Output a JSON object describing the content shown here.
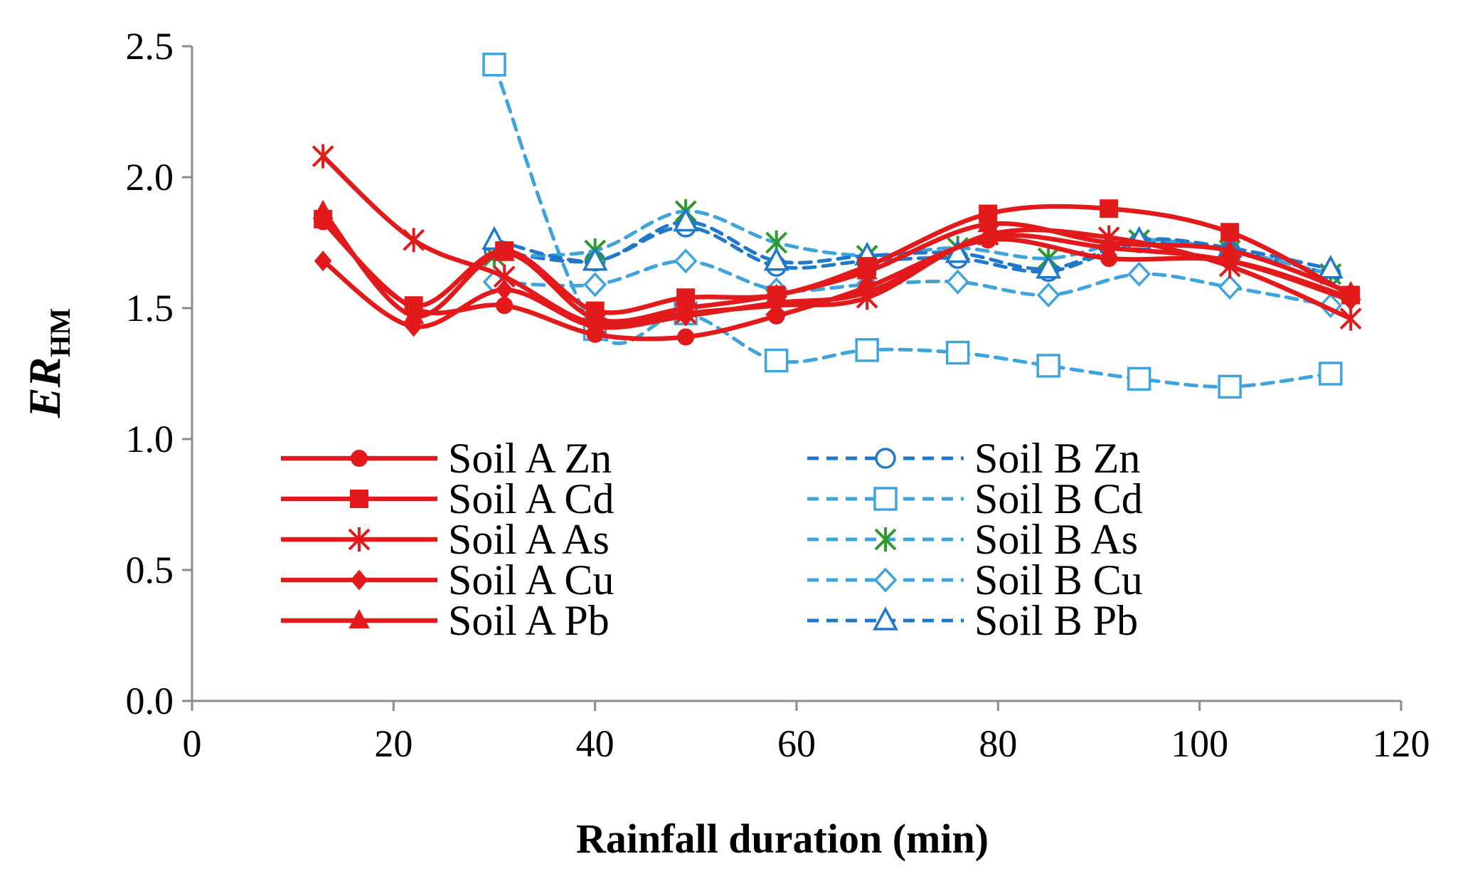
{
  "chart_data": {
    "type": "line",
    "title": "",
    "xlabel": "Rainfall duration (min)",
    "ylabel_main": "ER",
    "ylabel_sub": "HM",
    "xlim": [
      0,
      120
    ],
    "ylim": [
      0.0,
      2.5
    ],
    "xticks": [
      "0",
      "20",
      "40",
      "60",
      "80",
      "100",
      "120"
    ],
    "yticks": [
      "0.0",
      "0.5",
      "1.0",
      "1.5",
      "2.0",
      "2.5"
    ],
    "legend_position": "bottom-left inside plot, two columns",
    "series": [
      {
        "name": "Soil A  Zn",
        "soil": "Soil A",
        "metal": "Zn",
        "color": "#e31a1c",
        "dash": "solid",
        "marker": "circle-filled",
        "x": [
          13,
          22,
          31,
          40,
          49,
          58,
          67,
          79,
          91,
          103,
          115
        ],
        "y": [
          1.83,
          1.5,
          1.51,
          1.4,
          1.39,
          1.47,
          1.58,
          1.76,
          1.69,
          1.68,
          1.54
        ]
      },
      {
        "name": "Soil A  Cd",
        "soil": "Soil A",
        "metal": "Cd",
        "color": "#e31a1c",
        "dash": "solid",
        "marker": "square-filled",
        "x": [
          13,
          22,
          31,
          40,
          49,
          58,
          67,
          79,
          91,
          103,
          115
        ],
        "y": [
          1.84,
          1.51,
          1.72,
          1.49,
          1.54,
          1.55,
          1.66,
          1.86,
          1.88,
          1.79,
          1.55
        ]
      },
      {
        "name": "Soil A  As",
        "soil": "Soil A",
        "metal": "As",
        "color": "#e31a1c",
        "dash": "solid",
        "marker": "star",
        "x": [
          13,
          22,
          31,
          40,
          49,
          58,
          67,
          79,
          91,
          103,
          115
        ],
        "y": [
          2.08,
          1.76,
          1.62,
          1.44,
          1.48,
          1.51,
          1.54,
          1.78,
          1.77,
          1.66,
          1.46
        ]
      },
      {
        "name": "Soil A  Cu",
        "soil": "Soil A",
        "metal": "Cu",
        "color": "#e31a1c",
        "dash": "solid",
        "marker": "diamond-filled",
        "x": [
          13,
          22,
          31,
          40,
          49,
          58,
          67,
          79,
          91,
          103,
          115
        ],
        "y": [
          1.68,
          1.43,
          1.57,
          1.43,
          1.47,
          1.52,
          1.56,
          1.77,
          1.73,
          1.68,
          1.53
        ]
      },
      {
        "name": "Soil A  Pb",
        "soil": "Soil A",
        "metal": "Pb",
        "color": "#e31a1c",
        "dash": "solid",
        "marker": "triangle-filled",
        "x": [
          13,
          22,
          31,
          40,
          49,
          58,
          67,
          79,
          91,
          103,
          115
        ],
        "y": [
          1.87,
          1.47,
          1.71,
          1.46,
          1.5,
          1.55,
          1.64,
          1.82,
          1.75,
          1.72,
          1.56
        ]
      },
      {
        "name": "Soil B  Zn",
        "soil": "Soil B",
        "metal": "Zn",
        "color": "#1f78c8",
        "dash": "dashed",
        "marker": "circle-open",
        "x": [
          30,
          40,
          49,
          58,
          67,
          76,
          85,
          94,
          103,
          113
        ],
        "y": [
          1.72,
          1.68,
          1.81,
          1.66,
          1.68,
          1.69,
          1.64,
          1.75,
          1.72,
          1.63
        ]
      },
      {
        "name": "Soil B  Cd",
        "soil": "Soil B",
        "metal": "Cd",
        "color": "#3fa4dc",
        "dash": "dashed",
        "marker": "square-open",
        "x": [
          30,
          40,
          49,
          58,
          67,
          76,
          85,
          94,
          103,
          113
        ],
        "y": [
          2.43,
          1.42,
          1.48,
          1.3,
          1.34,
          1.33,
          1.28,
          1.23,
          1.2,
          1.25
        ]
      },
      {
        "name": "Soil B  As",
        "soil": "Soil B",
        "metal": "As",
        "color": "#3fa4dc",
        "dash": "dashed",
        "marker": "star-green",
        "x": [
          30,
          40,
          49,
          58,
          67,
          76,
          85,
          94,
          103,
          113
        ],
        "y": [
          1.7,
          1.72,
          1.87,
          1.75,
          1.7,
          1.73,
          1.69,
          1.76,
          1.72,
          1.63
        ]
      },
      {
        "name": "Soil B  Cu",
        "soil": "Soil B",
        "metal": "Cu",
        "color": "#3fa4dc",
        "dash": "dashed",
        "marker": "diamond-open",
        "x": [
          30,
          40,
          49,
          58,
          67,
          76,
          85,
          94,
          103,
          113
        ],
        "y": [
          1.6,
          1.59,
          1.68,
          1.57,
          1.59,
          1.6,
          1.55,
          1.63,
          1.58,
          1.51
        ]
      },
      {
        "name": "Soil B  Pb",
        "soil": "Soil B",
        "metal": "Pb",
        "color": "#1f78c8",
        "dash": "dashed",
        "marker": "triangle-open",
        "x": [
          30,
          40,
          49,
          58,
          67,
          76,
          85,
          94,
          103,
          113
        ],
        "y": [
          1.76,
          1.68,
          1.83,
          1.68,
          1.7,
          1.71,
          1.65,
          1.76,
          1.73,
          1.65
        ]
      }
    ]
  },
  "colors": {
    "soil_a": "#e31a1c",
    "soil_b_light": "#3fa4dc",
    "soil_b_dark": "#1f78c8",
    "as_marker_b": "#2e9a2e",
    "axis": "#8c8c8c"
  }
}
